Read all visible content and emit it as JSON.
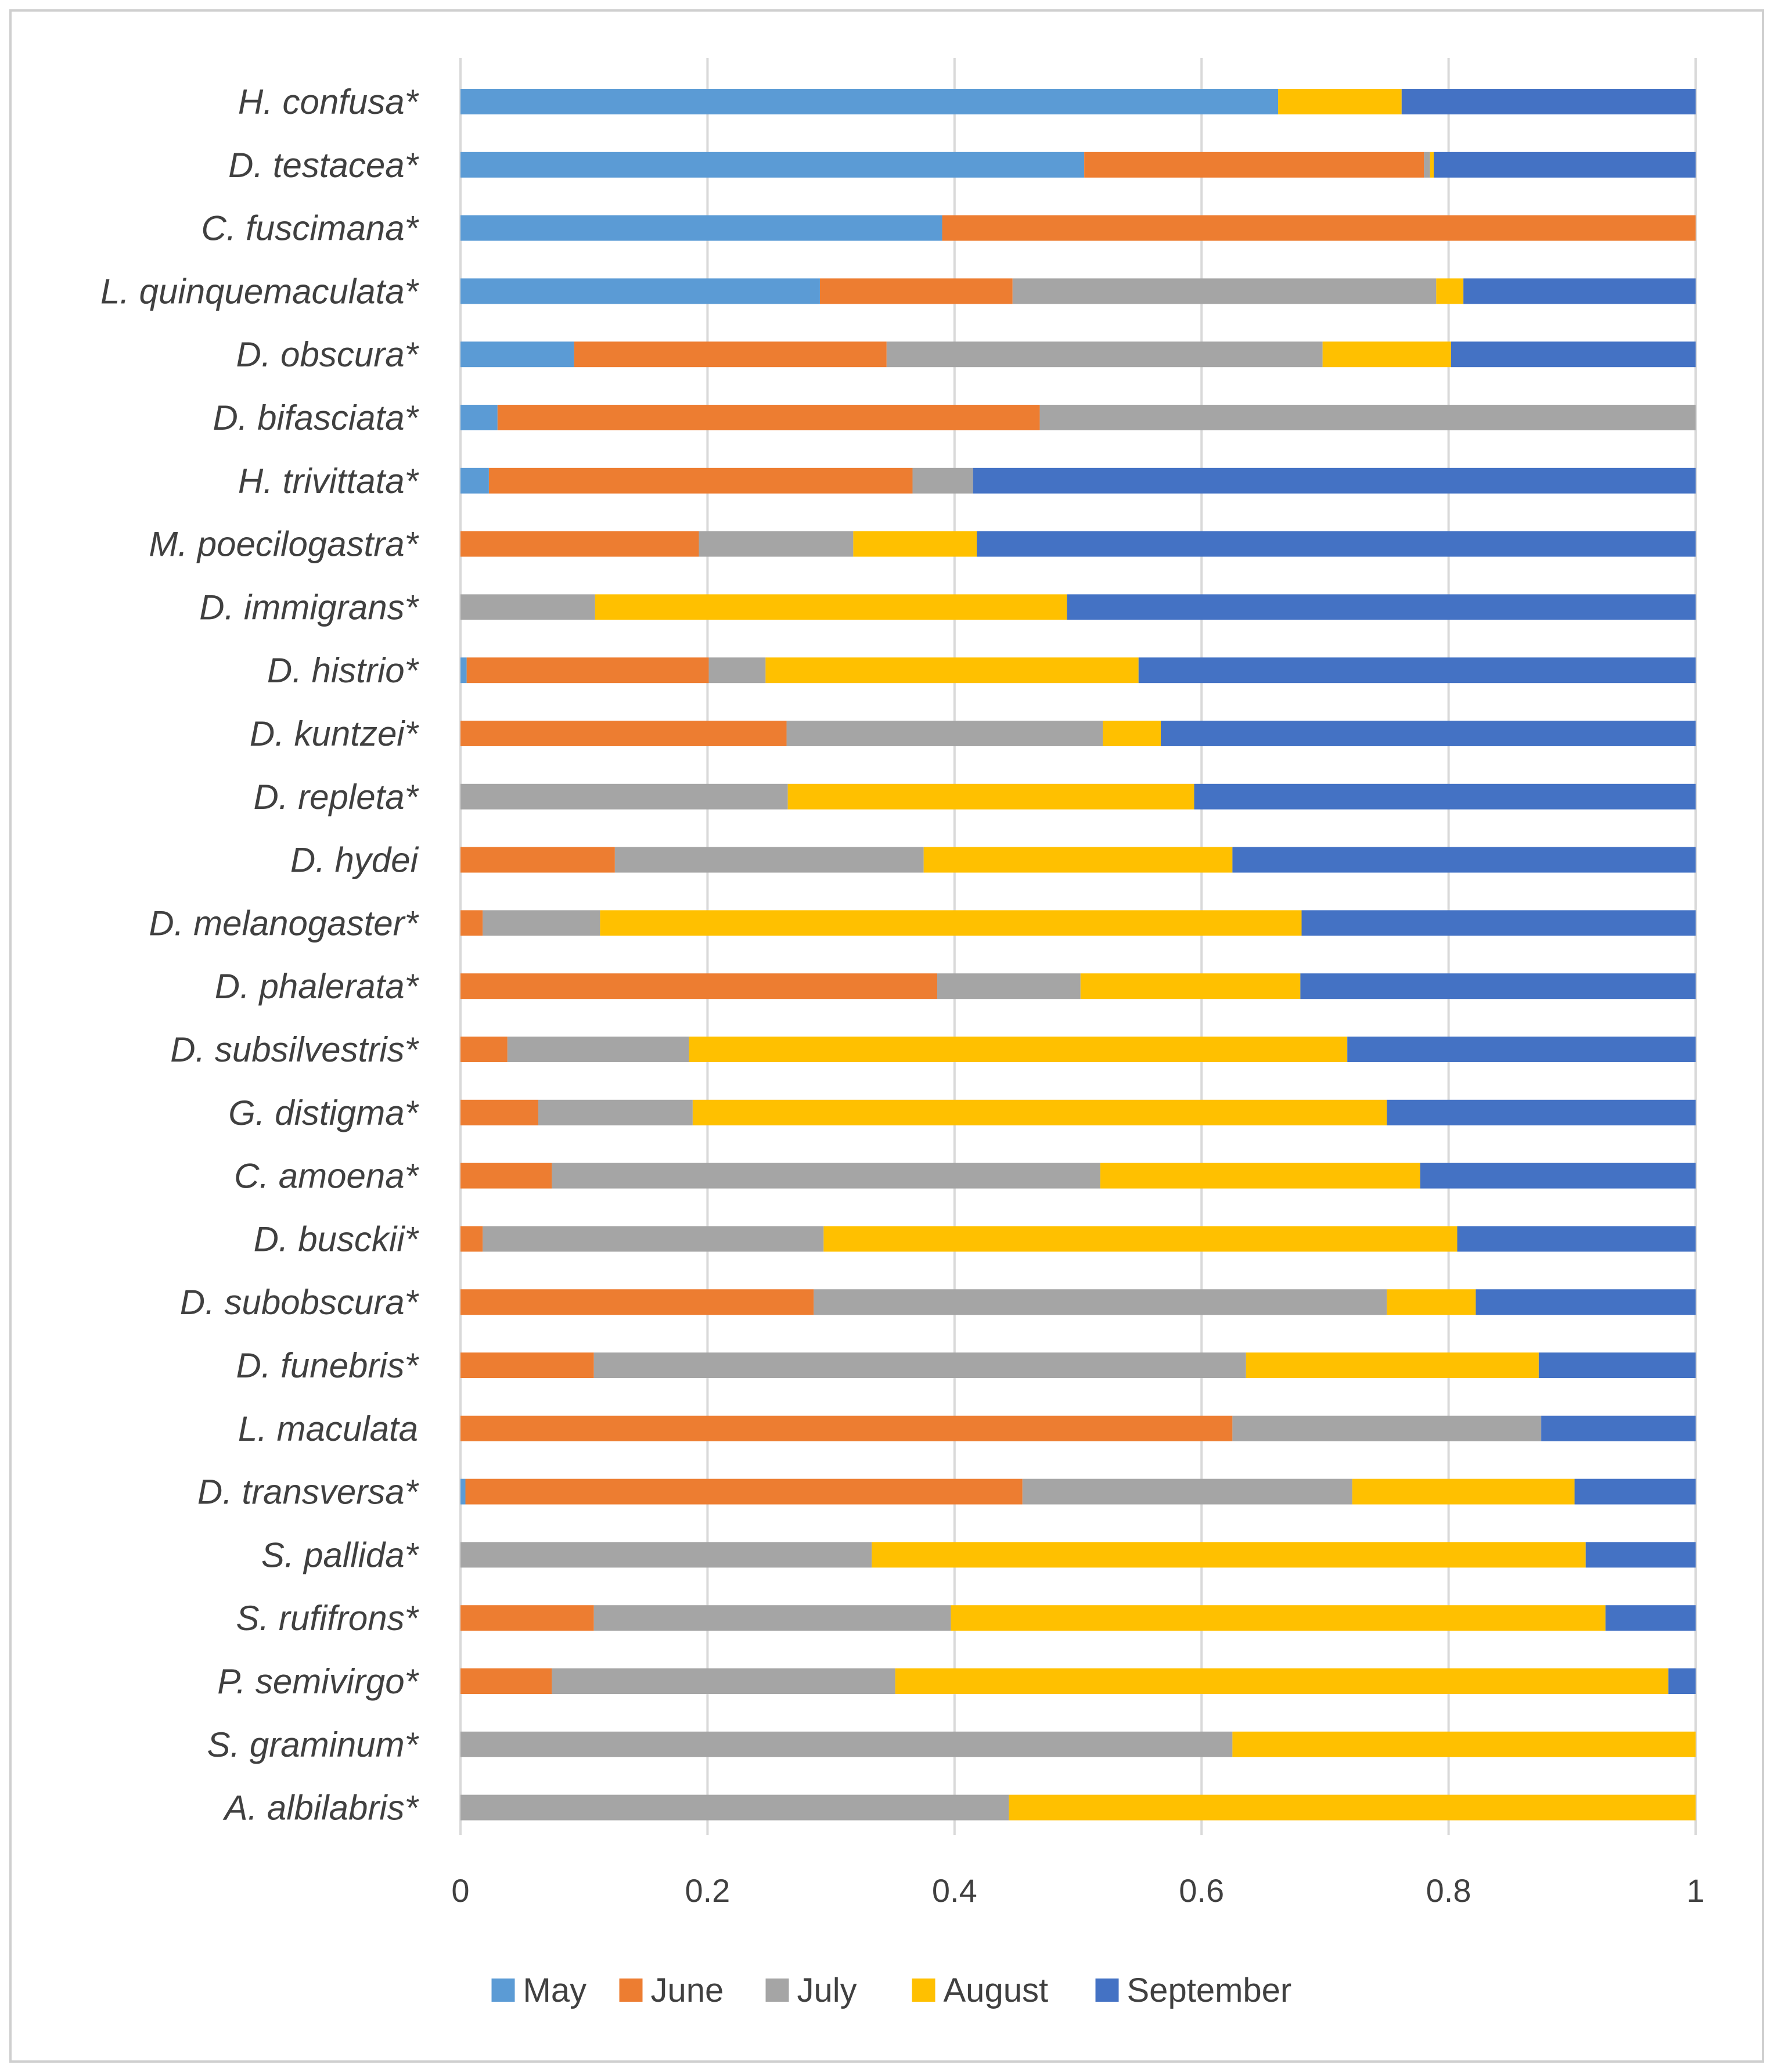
{
  "chart_data": {
    "type": "bar",
    "orientation": "horizontal",
    "stacked": true,
    "title": "",
    "xlabel": "",
    "ylabel": "",
    "xlim": [
      0,
      1
    ],
    "ticks": [
      "0",
      "0.2",
      "0.4",
      "0.6",
      "0.8",
      "1"
    ],
    "tick_values": [
      0,
      0.2,
      0.4,
      0.6,
      0.8,
      1
    ],
    "grid": true,
    "legend_position": "bottom",
    "categories": [
      "H. confusa*",
      "D. testacea*",
      "C. fuscimana*",
      "L. quinquemaculata*",
      "D. obscura*",
      "D. bifasciata*",
      "H. trivittata*",
      "M. poecilogastra*",
      "D. immigrans*",
      "D. histrio*",
      "D. kuntzei*",
      "D. repleta*",
      "D. hydei",
      "D. melanogaster*",
      "D. phalerata*",
      "D. subsilvestris*",
      "G. distigma*",
      "C. amoena*",
      "D. busckii*",
      "D. subobscura*",
      "D. funebris*",
      "L. maculata",
      "D. transversa*",
      "S. pallida*",
      "S. rufifrons*",
      "P. semivirgo*",
      "S. graminum*",
      "A. albilabris*"
    ],
    "series": [
      {
        "name": "May",
        "color": "#5b9bd5",
        "values": [
          0.662,
          0.505,
          0.39,
          0.291,
          0.092,
          0.03,
          0.023,
          0,
          0,
          0.005,
          0,
          0,
          0,
          0,
          0,
          0,
          0,
          0,
          0,
          0,
          0,
          0,
          0.004,
          0,
          0,
          0,
          0,
          0
        ]
      },
      {
        "name": "June",
        "color": "#ed7d31",
        "values": [
          0,
          0.275,
          0.61,
          0.156,
          0.253,
          0.439,
          0.343,
          0.193,
          0,
          0.196,
          0.264,
          0,
          0.125,
          0.018,
          0.386,
          0.038,
          0.063,
          0.074,
          0.018,
          0.286,
          0.108,
          0.625,
          0.451,
          0,
          0.108,
          0.074,
          0,
          0
        ]
      },
      {
        "name": "July",
        "color": "#a5a5a5",
        "values": [
          0,
          0.005,
          0,
          0.343,
          0.353,
          0.531,
          0.049,
          0.125,
          0.109,
          0.046,
          0.256,
          0.265,
          0.25,
          0.095,
          0.116,
          0.147,
          0.125,
          0.444,
          0.276,
          0.464,
          0.528,
          0.25,
          0.267,
          0.333,
          0.289,
          0.278,
          0.625,
          0.444
        ]
      },
      {
        "name": "August",
        "color": "#ffc000",
        "values": [
          0.1,
          0.003,
          0,
          0.022,
          0.104,
          0,
          0,
          0.1,
          0.382,
          0.302,
          0.047,
          0.329,
          0.25,
          0.568,
          0.178,
          0.533,
          0.562,
          0.259,
          0.513,
          0.072,
          0.237,
          0,
          0.18,
          0.578,
          0.53,
          0.626,
          0.375,
          0.556
        ]
      },
      {
        "name": "September",
        "color": "#4472c4",
        "values": [
          0.238,
          0.212,
          0,
          0.188,
          0.198,
          0,
          0.585,
          0.582,
          0.509,
          0.451,
          0.433,
          0.406,
          0.375,
          0.319,
          0.32,
          0.282,
          0.25,
          0.223,
          0.193,
          0.178,
          0.127,
          0.125,
          0.098,
          0.089,
          0.073,
          0.022,
          0,
          0
        ]
      }
    ]
  }
}
